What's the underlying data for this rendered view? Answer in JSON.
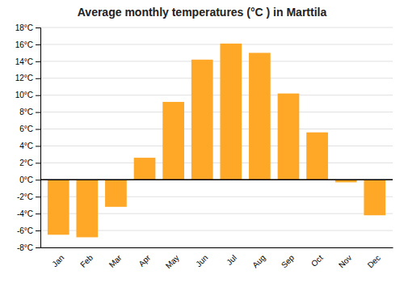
{
  "chart_data": {
    "type": "bar",
    "title": "Average monthly temperatures (°C ) in Marttila",
    "categories": [
      "Jan",
      "Feb",
      "Mar",
      "Apr",
      "May",
      "Jun",
      "Jul",
      "Aug",
      "Sep",
      "Oct",
      "Nov",
      "Dec"
    ],
    "values": [
      -6.5,
      -6.8,
      -3.2,
      2.6,
      9.2,
      14.2,
      16.1,
      15.0,
      10.2,
      5.6,
      -0.3,
      -4.2
    ],
    "color": "#FFA726",
    "ylim": [
      -8,
      18
    ],
    "yticks": [
      {
        "value": -8,
        "label": "-8°C"
      },
      {
        "value": -6,
        "label": "-6°C"
      },
      {
        "value": -4,
        "label": "-4°C"
      },
      {
        "value": -2,
        "label": "-2°C"
      },
      {
        "value": 0,
        "label": "0°C"
      },
      {
        "value": 2,
        "label": "2°C"
      },
      {
        "value": 4,
        "label": "4°C"
      },
      {
        "value": 6,
        "label": "6°C"
      },
      {
        "value": 8,
        "label": "8°C"
      },
      {
        "value": 10,
        "label": "10°C"
      },
      {
        "value": 12,
        "label": "12°C"
      },
      {
        "value": 14,
        "label": "14°C"
      },
      {
        "value": 16,
        "label": "16°C"
      },
      {
        "value": 18,
        "label": "18°C"
      }
    ],
    "grid": true
  }
}
